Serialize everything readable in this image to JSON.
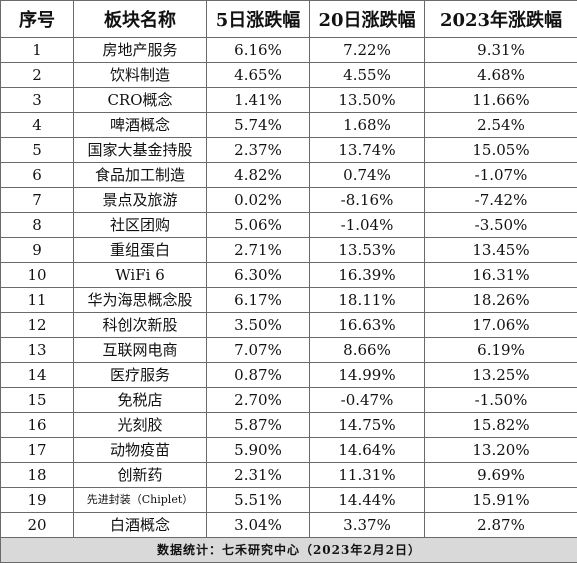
{
  "headers": [
    "序号",
    "板块名称",
    "5日涨跌幅",
    "20日涨跌幅",
    "2023年涨跌幅"
  ],
  "rows": [
    {
      "no": "1",
      "name": "房地产服务",
      "d5": "6.16%",
      "d20": "7.22%",
      "ytd": "9.31%"
    },
    {
      "no": "2",
      "name": "饮料制造",
      "d5": "4.65%",
      "d20": "4.55%",
      "ytd": "4.68%"
    },
    {
      "no": "3",
      "name": "CRO概念",
      "d5": "1.41%",
      "d20": "13.50%",
      "ytd": "11.66%"
    },
    {
      "no": "4",
      "name": "啤酒概念",
      "d5": "5.74%",
      "d20": "1.68%",
      "ytd": "2.54%"
    },
    {
      "no": "5",
      "name": "国家大基金持股",
      "d5": "2.37%",
      "d20": "13.74%",
      "ytd": "15.05%"
    },
    {
      "no": "6",
      "name": "食品加工制造",
      "d5": "4.82%",
      "d20": "0.74%",
      "ytd": "-1.07%"
    },
    {
      "no": "7",
      "name": "景点及旅游",
      "d5": "0.02%",
      "d20": "-8.16%",
      "ytd": "-7.42%"
    },
    {
      "no": "8",
      "name": "社区团购",
      "d5": "5.06%",
      "d20": "-1.04%",
      "ytd": "-3.50%"
    },
    {
      "no": "9",
      "name": "重组蛋白",
      "d5": "2.71%",
      "d20": "13.53%",
      "ytd": "13.45%"
    },
    {
      "no": "10",
      "name": "WiFi 6",
      "d5": "6.30%",
      "d20": "16.39%",
      "ytd": "16.31%"
    },
    {
      "no": "11",
      "name": "华为海思概念股",
      "d5": "6.17%",
      "d20": "18.11%",
      "ytd": "18.26%"
    },
    {
      "no": "12",
      "name": "科创次新股",
      "d5": "3.50%",
      "d20": "16.63%",
      "ytd": "17.06%"
    },
    {
      "no": "13",
      "name": "互联网电商",
      "d5": "7.07%",
      "d20": "8.66%",
      "ytd": "6.19%"
    },
    {
      "no": "14",
      "name": "医疗服务",
      "d5": "0.87%",
      "d20": "14.99%",
      "ytd": "13.25%"
    },
    {
      "no": "15",
      "name": "免税店",
      "d5": "2.70%",
      "d20": "-0.47%",
      "ytd": "-1.50%"
    },
    {
      "no": "16",
      "name": "光刻胶",
      "d5": "5.87%",
      "d20": "14.75%",
      "ytd": "15.82%"
    },
    {
      "no": "17",
      "name": "动物疫苗",
      "d5": "5.90%",
      "d20": "14.64%",
      "ytd": "13.20%"
    },
    {
      "no": "18",
      "name": "创新药",
      "d5": "2.31%",
      "d20": "11.31%",
      "ytd": "9.69%"
    },
    {
      "no": "19",
      "name": "先进封装（Chiplet）",
      "d5": "5.51%",
      "d20": "14.44%",
      "ytd": "15.91%"
    },
    {
      "no": "20",
      "name": "白酒概念",
      "d5": "3.04%",
      "d20": "3.37%",
      "ytd": "2.87%"
    }
  ],
  "footer": "数据统计：七禾研究中心（2023年2月2日）"
}
